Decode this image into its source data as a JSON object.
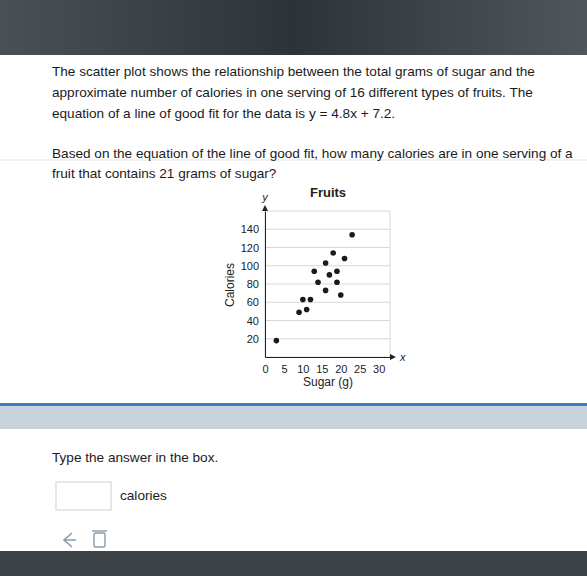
{
  "question": {
    "lines": [
      "The scatter plot shows the relationship between the total grams of sugar and the",
      "approximate number of calories in one serving of 16 different types of fruits. The",
      "equation of a line of good fit for the data is y = 4.8x + 7.2.",
      "Based on the equation of the line of good fit, how many calories are in one serving of a",
      "fruit that contains 21 grams of sugar?"
    ]
  },
  "chart_data": {
    "type": "scatter",
    "title": "Fruits",
    "x_label": "Sugar (g)",
    "y_label": "Calories",
    "x_symbol": "x",
    "y_symbol": "y",
    "x": [
      3,
      9,
      11,
      10,
      12,
      16,
      14,
      19,
      19,
      13,
      16,
      18,
      23,
      17,
      21,
      20
    ],
    "values": [
      18,
      49,
      52,
      63,
      63,
      73,
      82,
      82,
      94,
      94,
      103,
      114,
      134,
      90,
      108,
      68
    ],
    "color": "#1a1a1a",
    "marker": "circle",
    "xlim": [
      0,
      33
    ],
    "ylim": [
      0,
      160
    ],
    "xticks": [
      0,
      5,
      10,
      15,
      20,
      25,
      30
    ],
    "yticks": [
      20,
      40,
      60,
      80,
      100,
      120,
      140
    ],
    "grid": true
  },
  "answer": {
    "instruction": "Type the answer in the box.",
    "unit": "calories"
  }
}
